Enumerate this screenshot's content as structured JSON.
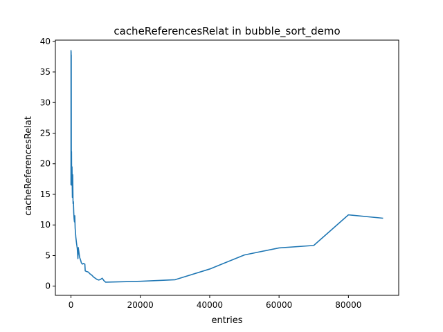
{
  "chart_data": {
    "type": "line",
    "title": "cacheReferencesRelat in bubble_sort_demo",
    "xlabel": "entries",
    "ylabel": "cacheReferencesRelat",
    "xlim": [
      -4500,
      94500
    ],
    "ylim": [
      -1.5,
      40.2
    ],
    "xticks": [
      0,
      20000,
      40000,
      60000,
      80000
    ],
    "yticks": [
      0,
      5,
      10,
      15,
      20,
      25,
      30,
      35,
      40
    ],
    "grid": false,
    "series": [
      {
        "color": "#1f77b4",
        "points": [
          [
            0,
            16.5
          ],
          [
            10,
            38.5
          ],
          [
            20,
            17
          ],
          [
            40,
            38.3
          ],
          [
            60,
            19
          ],
          [
            80,
            37.8
          ],
          [
            100,
            18
          ],
          [
            150,
            22
          ],
          [
            200,
            16.5
          ],
          [
            300,
            19.5
          ],
          [
            400,
            14.5
          ],
          [
            500,
            18.2
          ],
          [
            600,
            13.5
          ],
          [
            700,
            13.8
          ],
          [
            800,
            12
          ],
          [
            900,
            11
          ],
          [
            1000,
            10.5
          ],
          [
            1100,
            11.5
          ],
          [
            1200,
            9.5
          ],
          [
            1400,
            8
          ],
          [
            1600,
            7
          ],
          [
            1800,
            6.2
          ],
          [
            2000,
            4.5
          ],
          [
            2100,
            6.3
          ],
          [
            2300,
            5.5
          ],
          [
            2500,
            4.7
          ],
          [
            2800,
            4.2
          ],
          [
            3000,
            3.8
          ],
          [
            3300,
            3.6
          ],
          [
            3600,
            3.7
          ],
          [
            4000,
            3.6
          ],
          [
            4100,
            2.5
          ],
          [
            4500,
            2.4
          ],
          [
            5000,
            2.3
          ],
          [
            5500,
            2.0
          ],
          [
            6000,
            1.8
          ],
          [
            6500,
            1.5
          ],
          [
            7000,
            1.3
          ],
          [
            7500,
            1.1
          ],
          [
            8000,
            1.0
          ],
          [
            8500,
            1.1
          ],
          [
            9000,
            1.3
          ],
          [
            9500,
            0.9
          ],
          [
            10000,
            0.65
          ],
          [
            20000,
            0.8
          ],
          [
            30000,
            1.05
          ],
          [
            40000,
            2.8
          ],
          [
            50000,
            5.1
          ],
          [
            60000,
            6.25
          ],
          [
            70000,
            6.65
          ],
          [
            80000,
            11.65
          ],
          [
            90000,
            11.1
          ]
        ]
      }
    ]
  }
}
